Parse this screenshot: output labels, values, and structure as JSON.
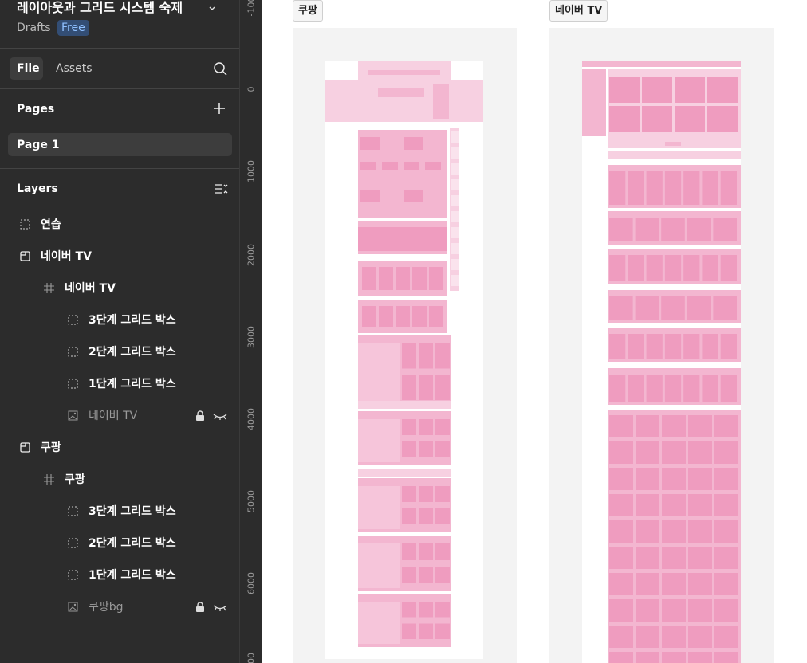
{
  "file": {
    "title": "레이아웃과 그리드 시스템 숙제",
    "location": "Drafts",
    "plan": "Free"
  },
  "tabs": [
    "File",
    "Assets"
  ],
  "pages": {
    "heading": "Pages",
    "items": [
      "Page 1"
    ]
  },
  "layers": {
    "heading": "Layers",
    "items": [
      "연습",
      "네이버 TV",
      "네이버 TV",
      "3단계 그리드 박스",
      "2단계 그리드 박스",
      "1단계 그리드 박스",
      "네이버 TV",
      "쿠팡",
      "쿠팡",
      "3단계 그리드 박스",
      "2단계 그리드 박스",
      "1단계 그리드 박스",
      "쿠팡bg"
    ]
  },
  "ruler": [
    "-100",
    "0",
    "1000",
    "2000",
    "3000",
    "4000",
    "5000",
    "6000",
    "00"
  ],
  "frames": [
    "쿠팡",
    "네이버 TV"
  ]
}
